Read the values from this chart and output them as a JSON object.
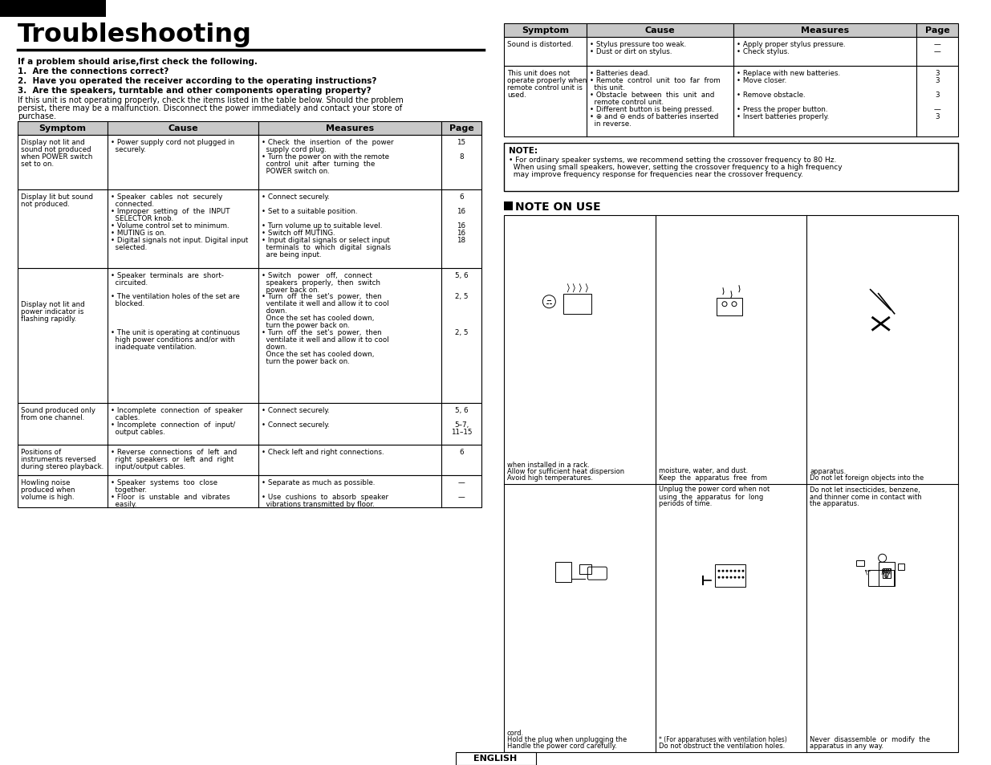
{
  "page_bg": "#ffffff",
  "header_bg": "#000000",
  "header_text": "ENGLISH",
  "header_text_color": "#ffffff",
  "title": "Troubleshooting",
  "table_header_bg": "#c8c8c8",
  "footer_text": "ENGLISH"
}
